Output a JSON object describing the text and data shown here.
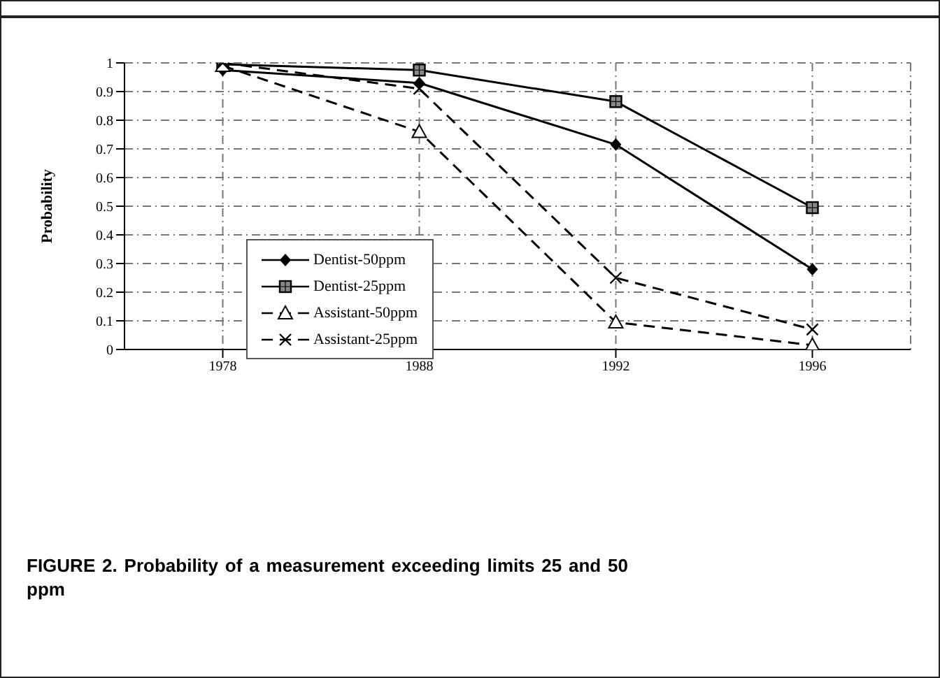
{
  "chart_data": {
    "type": "line",
    "ylabel": "Probability",
    "categories": [
      "1978",
      "1988",
      "1992",
      "1996"
    ],
    "series": [
      {
        "name": "Dentist-50ppm",
        "color": "#000000",
        "marker": "diamond",
        "line_style": "solid",
        "values": [
          0.975,
          0.93,
          0.715,
          0.28
        ]
      },
      {
        "name": "Dentist-25ppm",
        "color": "#000000",
        "marker": "square",
        "line_style": "solid",
        "values": [
          0.995,
          0.975,
          0.865,
          0.495
        ]
      },
      {
        "name": "Assistant-50ppm",
        "color": "#000000",
        "marker": "triangle",
        "line_style": "dashed",
        "values": [
          0.99,
          0.76,
          0.095,
          0.015
        ]
      },
      {
        "name": "Assistant-25ppm",
        "color": "#000000",
        "marker": "cross",
        "line_style": "dashed",
        "values": [
          1.0,
          0.91,
          0.25,
          0.07
        ]
      }
    ],
    "ylim": [
      0,
      1
    ],
    "yticks": [
      0,
      0.1,
      0.2,
      0.3,
      0.4,
      0.5,
      0.6,
      0.7,
      0.8,
      0.9,
      1
    ],
    "grid": true,
    "legend": "left",
    "annotations": [
      "FIGURE 2.  Probability of a measurement exceeding limits 25 and 50 ppm"
    ]
  }
}
